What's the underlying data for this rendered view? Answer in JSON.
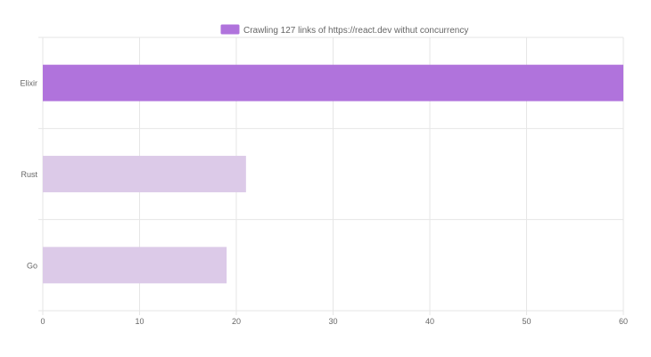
{
  "chart_data": {
    "type": "bar",
    "orientation": "horizontal",
    "categories": [
      "Elixir",
      "Rust",
      "Go"
    ],
    "series": [
      {
        "name": "Crawling 127 links of https://react.dev withut concurrency",
        "values": [
          60,
          21,
          19
        ],
        "colors": [
          "#b073dc",
          "#dccae8",
          "#dccae8"
        ]
      }
    ],
    "xlim": [
      0,
      60
    ],
    "xticks": [
      0,
      10,
      20,
      30,
      40,
      50,
      60
    ],
    "grid": true,
    "legend": "top-center",
    "legend_color": "#b073dc",
    "colors": {
      "grid": "#e6e6e6",
      "text": "#666666"
    }
  }
}
